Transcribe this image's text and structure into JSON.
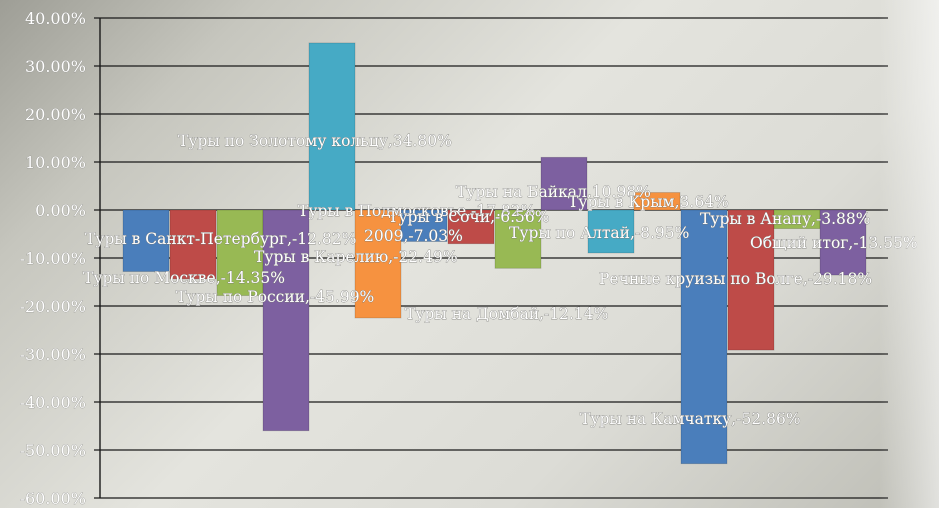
{
  "chart_data": {
    "type": "bar",
    "title": "",
    "xlabel": "",
    "ylabel": "",
    "ylim": [
      -0.6,
      0.4
    ],
    "y_ticks": [
      "40.00%",
      "30.00%",
      "20.00%",
      "10.00%",
      "0.00%",
      "-10.00%",
      "-20.00%",
      "-30.00%",
      "-40.00%",
      "-50.00%",
      "-60.00%"
    ],
    "grid": true,
    "legend": "none",
    "series": [
      {
        "name": "Туры в Санкт-Петербург",
        "value": -0.1282,
        "label": "Туры в Санкт-Петербург,-12.82%",
        "color": "#4a7ebb"
      },
      {
        "name": "Туры по Москве",
        "value": -0.1435,
        "label": "Туры по Москве,-14.35%",
        "color": "#be4b48"
      },
      {
        "name": "Туры в Подмосковье",
        "value": -0.1782,
        "label": "Туры в Подмосковье,-17.82%",
        "color": "#98b954"
      },
      {
        "name": "Туры по России",
        "value": -0.4599,
        "label": "Туры по России,-45.99%",
        "color": "#7d60a0"
      },
      {
        "name": "Туры по Золотому кольцу",
        "value": 0.348,
        "label": "Туры по Золотому кольцу,34.80%",
        "color": "#46aac5"
      },
      {
        "name": "Туры в Карелию",
        "value": -0.2249,
        "label": "Туры в Карелию,-22.49%",
        "color": "#f69240"
      },
      {
        "name": "Туры в Сочи",
        "value": -0.0656,
        "label": "Туры в Сочи,-6.56%",
        "color": "#4a7ebb"
      },
      {
        "name": "2009",
        "value": -0.0703,
        "label": "2009,-7.03%",
        "color": "#be4b48"
      },
      {
        "name": "Туры на Домбай",
        "value": -0.1214,
        "label": "Туры на Домбай,-12.14%",
        "color": "#98b954"
      },
      {
        "name": "Туры на Байкал",
        "value": 0.1098,
        "label": "Туры на Байкал,10.98%",
        "color": "#7d60a0"
      },
      {
        "name": "Туры по Алтай",
        "value": -0.0895,
        "label": "Туры по Алтай,-8.95%",
        "color": "#46aac5"
      },
      {
        "name": "Туры в Крым",
        "value": 0.0364,
        "label": "Туры в Крым,3.64%",
        "color": "#f69240"
      },
      {
        "name": "Туры на Камчатку",
        "value": -0.5286,
        "label": "Туры на Камчатку,-52.86%",
        "color": "#4a7ebb"
      },
      {
        "name": "Речные круизы по Волге",
        "value": -0.2918,
        "label": "Речные круизы по Волге,-29.18%",
        "color": "#be4b48"
      },
      {
        "name": "Туры в Анапу",
        "value": -0.0388,
        "label": "Туры в Анапу,-3.88%",
        "color": "#98b954"
      },
      {
        "name": "Общий итог",
        "value": -0.1355,
        "label": "Общий итог,-13.55%",
        "color": "#7d60a0"
      }
    ]
  }
}
